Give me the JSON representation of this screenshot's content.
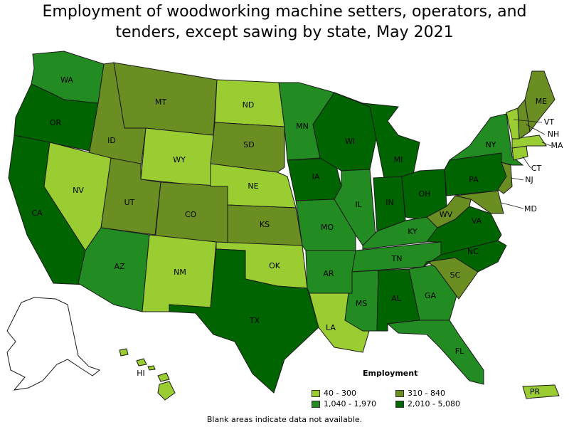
{
  "title_line1": "Employment of woodworking machine setters, operators, and",
  "title_line2": "tenders, except sawing by state, May 2021",
  "legend": {
    "title": "Employment",
    "bins": [
      {
        "label": "40 - 300",
        "color": "#9acd32"
      },
      {
        "label": "310 - 840",
        "color": "#6b8e23"
      },
      {
        "label": "1,040 - 1,970",
        "color": "#228b22"
      },
      {
        "label": "2,010 - 5,080",
        "color": "#006400"
      }
    ]
  },
  "note": "Blank areas indicate data not available.",
  "states": {
    "WA": {
      "label": "WA",
      "bin": 2
    },
    "OR": {
      "label": "OR",
      "bin": 3
    },
    "CA": {
      "label": "CA",
      "bin": 3
    },
    "ID": {
      "label": "ID",
      "bin": 1
    },
    "NV": {
      "label": "NV",
      "bin": 0
    },
    "MT": {
      "label": "MT",
      "bin": 1
    },
    "WY": {
      "label": "WY",
      "bin": 0
    },
    "UT": {
      "label": "UT",
      "bin": 1
    },
    "AZ": {
      "label": "AZ",
      "bin": 2
    },
    "CO": {
      "label": "CO",
      "bin": 1
    },
    "NM": {
      "label": "NM",
      "bin": 0
    },
    "ND": {
      "label": "ND",
      "bin": 0
    },
    "SD": {
      "label": "SD",
      "bin": 1
    },
    "NE": {
      "label": "NE",
      "bin": 0
    },
    "KS": {
      "label": "KS",
      "bin": 1
    },
    "OK": {
      "label": "OK",
      "bin": 0
    },
    "TX": {
      "label": "TX",
      "bin": 3
    },
    "MN": {
      "label": "MN",
      "bin": 2
    },
    "IA": {
      "label": "IA",
      "bin": 3
    },
    "MO": {
      "label": "MO",
      "bin": 2
    },
    "AR": {
      "label": "AR",
      "bin": 2
    },
    "LA": {
      "label": "LA",
      "bin": 0
    },
    "WI": {
      "label": "WI",
      "bin": 3
    },
    "IL": {
      "label": "IL",
      "bin": 2
    },
    "MI": {
      "label": "MI",
      "bin": 3
    },
    "IN": {
      "label": "IN",
      "bin": 3
    },
    "OH": {
      "label": "OH",
      "bin": 3
    },
    "KY": {
      "label": "KY",
      "bin": 2
    },
    "TN": {
      "label": "TN",
      "bin": 2
    },
    "MS": {
      "label": "MS",
      "bin": 2
    },
    "AL": {
      "label": "AL",
      "bin": 3
    },
    "GA": {
      "label": "GA",
      "bin": 2
    },
    "FL": {
      "label": "FL",
      "bin": 2
    },
    "SC": {
      "label": "SC",
      "bin": 1
    },
    "NC": {
      "label": "NC",
      "bin": 3
    },
    "VA": {
      "label": "VA",
      "bin": 3
    },
    "WV": {
      "label": "WV",
      "bin": 1
    },
    "PA": {
      "label": "PA",
      "bin": 3
    },
    "NY": {
      "label": "NY",
      "bin": 2
    },
    "NJ": {
      "label": "NJ",
      "bin": 1
    },
    "MD": {
      "label": "MD",
      "bin": 1
    },
    "CT": {
      "label": "CT",
      "bin": 0
    },
    "MA": {
      "label": "MA",
      "bin": 0
    },
    "VT": {
      "label": "VT",
      "bin": 0
    },
    "NH": {
      "label": "NH",
      "bin": 1
    },
    "ME": {
      "label": "ME",
      "bin": 1
    },
    "HI": {
      "label": "HI",
      "bin": 0
    },
    "PR": {
      "label": "PR",
      "bin": 0
    },
    "AK": {
      "label": "",
      "bin": null
    }
  }
}
